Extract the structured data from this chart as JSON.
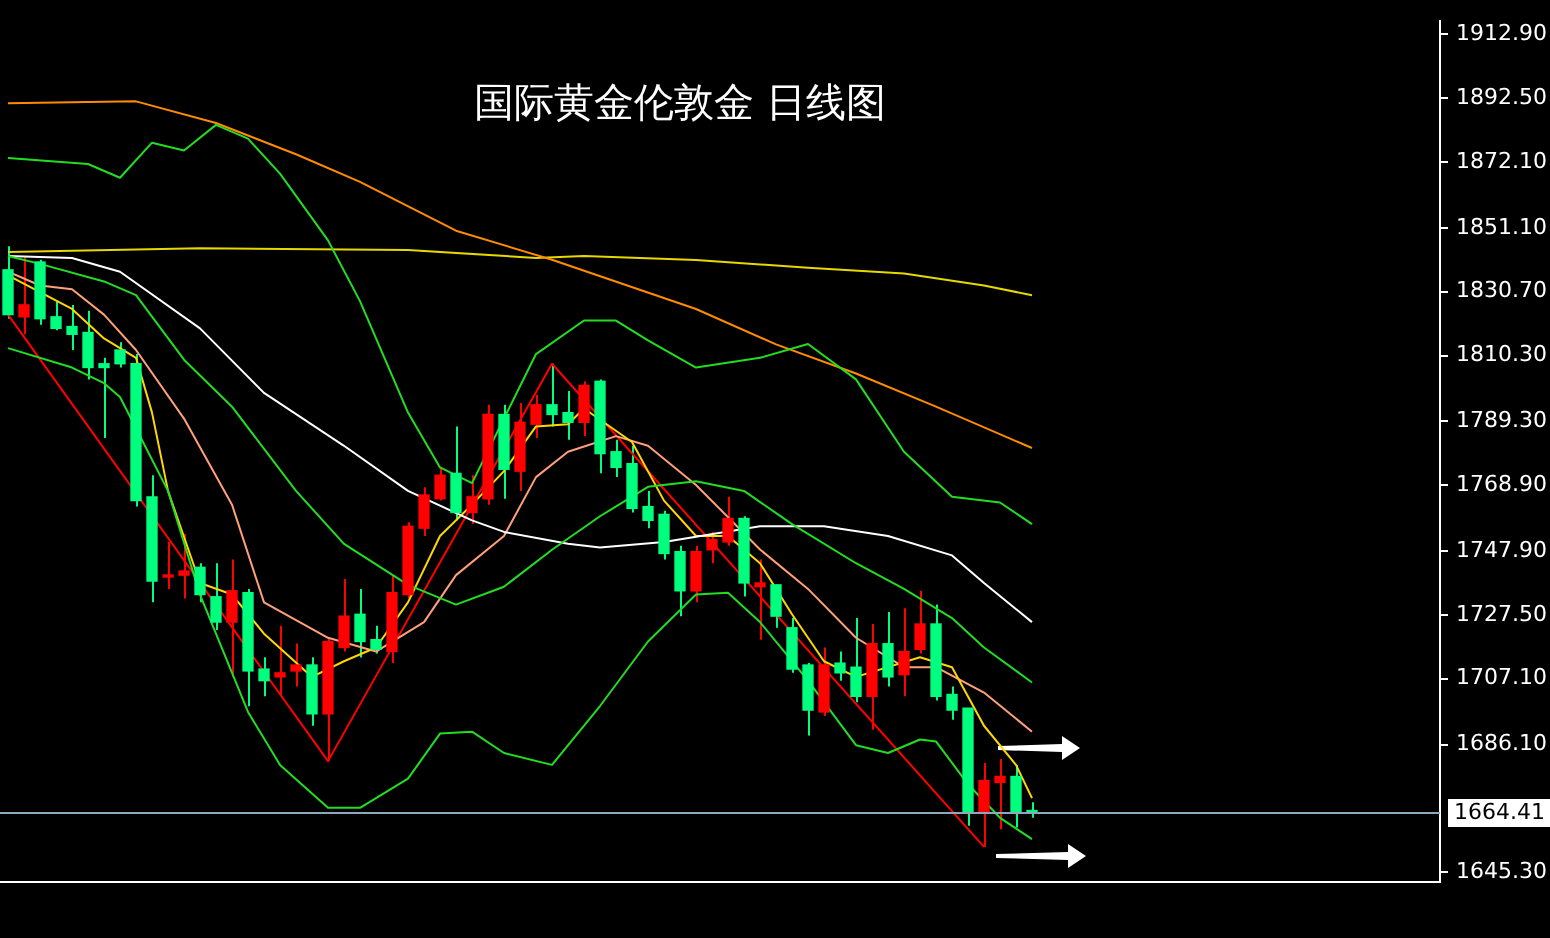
{
  "chart_data": {
    "type": "candlestick",
    "title": "国际黄金伦敦金 日线图",
    "categories": [
      null,
      null,
      null,
      null,
      null,
      null,
      null,
      null,
      null,
      null,
      null,
      null,
      null,
      null,
      null,
      null,
      null,
      null,
      null,
      null,
      null,
      null,
      null,
      null,
      null,
      null,
      null,
      null,
      null,
      null,
      null,
      null,
      null,
      null,
      null,
      null,
      null,
      null,
      null,
      null,
      null,
      null,
      null,
      null,
      null,
      null,
      null,
      null,
      null,
      null,
      null,
      null,
      null,
      null,
      null,
      null,
      null,
      null,
      null,
      null,
      null,
      null,
      null,
      null,
      null,
      null,
      null,
      null,
      null,
      null,
      null,
      null,
      null,
      null,
      null,
      null,
      null,
      null,
      null,
      null,
      null,
      null,
      null,
      null,
      null,
      null,
      null,
      null,
      null,
      null
    ],
    "ohlc": [
      [
        1837.7,
        1845.2,
        1822.1,
        1823.4
      ],
      [
        1822.7,
        1842.1,
        1817.1,
        1826.5
      ],
      [
        1840.2,
        1840.9,
        1820.2,
        1822.1
      ],
      [
        1822.7,
        1827.7,
        1818.4,
        1819.0
      ],
      [
        1819.6,
        1826.5,
        1812.1,
        1817.1
      ],
      [
        1817.7,
        1824.6,
        1802.7,
        1806.5
      ],
      [
        1807.7,
        1809.6,
        1784.0,
        1806.5
      ],
      [
        1812.1,
        1814.6,
        1806.5,
        1807.7
      ],
      [
        1807.7,
        1810.8,
        1762.1,
        1764.0
      ],
      [
        1765.2,
        1772.1,
        1731.5,
        1738.3
      ],
      [
        1739.6,
        1750.8,
        1735.8,
        1740.2
      ],
      [
        1740.2,
        1753.3,
        1732.7,
        1741.5
      ],
      [
        1742.7,
        1744.0,
        1731.5,
        1734.0
      ],
      [
        1733.3,
        1744.0,
        1722.7,
        1725.2
      ],
      [
        1725.2,
        1745.2,
        1707.7,
        1735.2
      ],
      [
        1734.6,
        1735.8,
        1698.3,
        1709.6
      ],
      [
        1710.2,
        1714.0,
        1701.5,
        1706.5
      ],
      [
        1707.7,
        1724.0,
        1701.5,
        1709.0
      ],
      [
        1709.6,
        1718.4,
        1704.6,
        1711.5
      ],
      [
        1711.5,
        1714.0,
        1692.1,
        1695.9
      ],
      [
        1695.9,
        1720.2,
        1680.8,
        1719.0
      ],
      [
        1717.1,
        1739.0,
        1715.8,
        1727.1
      ],
      [
        1727.7,
        1735.8,
        1713.9,
        1719.0
      ],
      [
        1719.6,
        1724.0,
        1715.2,
        1716.5
      ],
      [
        1715.8,
        1740.2,
        1712.1,
        1734.6
      ],
      [
        1734.0,
        1757.1,
        1732.7,
        1755.8
      ],
      [
        1755.2,
        1768.3,
        1752.7,
        1765.8
      ],
      [
        1764.6,
        1774.6,
        1764.0,
        1772.1
      ],
      [
        1772.7,
        1787.7,
        1757.7,
        1760.2
      ],
      [
        1760.2,
        1772.1,
        1756.5,
        1765.2
      ],
      [
        1764.6,
        1794.6,
        1762.7,
        1791.5
      ],
      [
        1791.5,
        1794.6,
        1764.6,
        1774.0
      ],
      [
        1773.4,
        1795.2,
        1767.1,
        1789.0
      ],
      [
        1788.4,
        1797.7,
        1784.0,
        1794.6
      ],
      [
        1794.6,
        1807.7,
        1787.7,
        1791.5
      ],
      [
        1792.1,
        1799.0,
        1783.4,
        1789.0
      ],
      [
        1789.0,
        1802.1,
        1784.6,
        1800.8
      ],
      [
        1802.1,
        1802.7,
        1772.7,
        1779.0
      ],
      [
        1779.6,
        1783.4,
        1771.5,
        1774.6
      ],
      [
        1775.8,
        1781.5,
        1760.2,
        1761.5
      ],
      [
        1762.1,
        1767.1,
        1755.2,
        1757.7
      ],
      [
        1759.6,
        1760.8,
        1745.2,
        1747.1
      ],
      [
        1747.7,
        1749.6,
        1727.1,
        1735.2
      ],
      [
        1735.2,
        1749.6,
        1731.5,
        1747.7
      ],
      [
        1748.3,
        1754.0,
        1744.0,
        1751.5
      ],
      [
        1750.8,
        1765.2,
        1749.6,
        1758.3
      ],
      [
        1758.3,
        1759.0,
        1733.4,
        1737.7
      ],
      [
        1736.5,
        1745.2,
        1719.6,
        1737.7
      ],
      [
        1737.1,
        1737.1,
        1723.4,
        1727.1
      ],
      [
        1723.4,
        1726.5,
        1709.0,
        1710.2
      ],
      [
        1711.5,
        1712.1,
        1689.0,
        1697.1
      ],
      [
        1696.5,
        1717.1,
        1695.2,
        1711.5
      ],
      [
        1712.1,
        1715.8,
        1706.5,
        1709.0
      ],
      [
        1710.8,
        1726.5,
        1699.6,
        1701.5
      ],
      [
        1701.5,
        1724.6,
        1690.8,
        1718.3
      ],
      [
        1718.3,
        1728.4,
        1704.6,
        1707.7
      ],
      [
        1708.4,
        1729.6,
        1701.5,
        1715.8
      ],
      [
        1716.5,
        1735.2,
        1715.2,
        1724.6
      ],
      [
        1724.6,
        1730.8,
        1700.2,
        1701.5
      ],
      [
        1702.1,
        1704.6,
        1694.0,
        1697.1
      ],
      [
        1697.7,
        1697.7,
        1660.2,
        1664.6
      ],
      [
        1664.6,
        1680.2,
        1653.4,
        1674.6
      ],
      [
        1674.0,
        1681.5,
        1659.0,
        1675.9
      ],
      [
        1675.9,
        1679.6,
        1659.6,
        1664.6
      ],
      [
        1664.6,
        1667.7,
        1662.7,
        1664.4
      ],
      null,
      null,
      null,
      null,
      null,
      null,
      null,
      null,
      null,
      null,
      null,
      null,
      null,
      null,
      null,
      null,
      null,
      null,
      null,
      null,
      null,
      null,
      null,
      null,
      null
    ],
    "colors": [
      "#00ff7f",
      "#ff0000",
      "#00ff7f",
      "#00ff7f",
      "#00ff7f",
      "#00ff7f",
      "#00ff7f",
      "#00ff7f",
      "#00ff7f",
      "#00ff7f",
      "#ff0000",
      "#ff0000",
      "#00ff7f",
      "#00ff7f",
      "#ff0000",
      "#00ff7f",
      "#00ff7f",
      "#ff0000",
      "#ff0000",
      "#00ff7f",
      "#ff0000",
      "#ff0000",
      "#00ff7f",
      "#00ff7f",
      "#ff0000",
      "#ff0000",
      "#ff0000",
      "#ff0000",
      "#00ff7f",
      "#ff0000",
      "#ff0000",
      "#00ff7f",
      "#ff0000",
      "#ff0000",
      "#00ff7f",
      "#00ff7f",
      "#ff0000",
      "#00ff7f",
      "#00ff7f",
      "#00ff7f",
      "#00ff7f",
      "#00ff7f",
      "#00ff7f",
      "#ff0000",
      "#ff0000",
      "#ff0000",
      "#00ff7f",
      "#ff0000",
      "#00ff7f",
      "#00ff7f",
      "#00ff7f",
      "#ff0000",
      "#00ff7f",
      "#00ff7f",
      "#ff0000",
      "#00ff7f",
      "#ff0000",
      "#ff0000",
      "#00ff7f",
      "#00ff7f",
      "#00ff7f",
      "#ff0000",
      "#ff0000",
      "#00ff7f",
      "#00ff7f",
      null,
      null,
      null,
      null,
      null,
      null,
      null,
      null,
      null,
      null,
      null,
      null,
      null,
      null,
      null,
      null,
      null,
      null,
      null,
      null,
      null,
      null,
      null,
      null,
      null
    ],
    "series": [
      {
        "type": "line",
        "color": "#22dd22",
        "values": [
          1873.4,
          null,
          null,
          null,
          null,
          1871.5,
          null,
          1867.1,
          null,
          1878.3,
          null,
          1875.8,
          null,
          1884.0,
          null,
          1879.6,
          null,
          1868.4,
          null,
          null,
          1847.1,
          null,
          1827.7,
          null,
          null,
          1792.1,
          null,
          1774.6,
          null,
          1769.6,
          null,
          1790.2,
          null,
          1810.8,
          null,
          null,
          1821.5,
          null,
          1821.5,
          null,
          1815.2,
          null,
          null,
          1806.5,
          null,
          null,
          null,
          1809.6,
          null,
          null,
          1814.0,
          null,
          null,
          1802.7,
          null,
          null,
          1779.6,
          null,
          null,
          1765.2,
          null,
          null,
          1763.4,
          null,
          1756.5,
          null,
          null,
          null,
          null,
          null,
          null,
          null,
          null,
          null,
          null,
          null,
          null,
          null,
          null,
          null,
          null,
          null,
          null,
          null,
          null,
          null,
          null,
          null,
          null,
          null
        ]
      },
      {
        "type": "line",
        "color": "#22dd22",
        "values": [
          1842.1,
          null,
          1839.6,
          null,
          null,
          null,
          1834.0,
          null,
          1829.6,
          null,
          null,
          1809.0,
          null,
          null,
          1794.0,
          null,
          null,
          null,
          1767.1,
          null,
          null,
          1750.2,
          null,
          null,
          null,
          1737.1,
          null,
          null,
          1730.8,
          null,
          null,
          1736.5,
          null,
          null,
          1748.3,
          null,
          null,
          1759.0,
          null,
          null,
          1768.4,
          null,
          null,
          1770.2,
          null,
          null,
          1767.1,
          null,
          null,
          1756.5,
          null,
          null,
          null,
          1744.0,
          null,
          null,
          1735.8,
          null,
          null,
          1726.5,
          null,
          1717.1,
          null,
          null,
          1705.9,
          null,
          null,
          null,
          null,
          null,
          null,
          null,
          null,
          null,
          null,
          null,
          null,
          null,
          null,
          null,
          null,
          null,
          null,
          null,
          null,
          null,
          null,
          null,
          null,
          null
        ]
      },
      {
        "type": "line",
        "color": "#22dd22",
        "values": [
          1812.7,
          null,
          null,
          null,
          1806.5,
          null,
          1801.5,
          1797.1,
          null,
          null,
          1767.1,
          null,
          1734.0,
          null,
          null,
          1696.5,
          null,
          1679.6,
          null,
          null,
          1665.9,
          null,
          1665.9,
          null,
          null,
          1675.2,
          null,
          1689.6,
          null,
          1690.2,
          null,
          1683.4,
          null,
          null,
          1679.6,
          null,
          null,
          1698.4,
          null,
          null,
          1719.0,
          null,
          null,
          1734.0,
          null,
          1734.6,
          null,
          1725.2,
          null,
          null,
          1706.5,
          null,
          null,
          1685.9,
          null,
          1683.4,
          null,
          1687.7,
          1687.1,
          null,
          1673.4,
          null,
          1662.7,
          null,
          1655.9,
          null,
          null,
          null,
          null,
          null,
          null,
          null,
          null,
          null,
          null,
          null,
          null,
          null,
          null,
          null,
          null,
          null,
          null,
          null,
          null,
          null,
          null,
          null,
          null,
          null
        ]
      },
      {
        "type": "line",
        "color": "#ffffff",
        "values": [
          1842.1,
          null,
          null,
          null,
          1841.5,
          null,
          null,
          1837.1,
          null,
          null,
          null,
          null,
          1819.0,
          null,
          null,
          null,
          1798.4,
          null,
          null,
          null,
          null,
          1781.5,
          null,
          null,
          null,
          1767.1,
          null,
          null,
          null,
          1757.7,
          null,
          1754.0,
          null,
          null,
          null,
          1750.2,
          null,
          1749.0,
          null,
          null,
          null,
          1750.8,
          null,
          null,
          null,
          null,
          null,
          1755.8,
          null,
          null,
          null,
          1755.8,
          null,
          null,
          null,
          1752.7,
          null,
          null,
          null,
          1746.5,
          null,
          1737.7,
          null,
          null,
          1725.2,
          null,
          null,
          null,
          null,
          null,
          null,
          null,
          null,
          null,
          null,
          null,
          null,
          null,
          null,
          null,
          null,
          null,
          null,
          null,
          null,
          null,
          null,
          null,
          null,
          null
        ]
      },
      {
        "type": "line",
        "color": "#ff8c00",
        "values": [
          1890.9,
          null,
          null,
          null,
          null,
          null,
          null,
          null,
          1891.5,
          null,
          null,
          null,
          null,
          1884.6,
          null,
          null,
          null,
          null,
          1874.6,
          null,
          null,
          null,
          1865.8,
          null,
          null,
          null,
          null,
          null,
          1850.2,
          null,
          null,
          null,
          null,
          null,
          1840.9,
          null,
          null,
          null,
          null,
          null,
          null,
          null,
          null,
          1825.2,
          null,
          null,
          null,
          null,
          1813.9,
          null,
          null,
          null,
          null,
          1804.6,
          null,
          null,
          null,
          null,
          1794.0,
          null,
          null,
          null,
          null,
          null,
          1780.8,
          null,
          null,
          null,
          null,
          null,
          null,
          null,
          null,
          null,
          null,
          null,
          null,
          null,
          null,
          null,
          null,
          null,
          null,
          null,
          null,
          null,
          null,
          null,
          null,
          null
        ]
      },
      {
        "type": "line",
        "color": "#e6d800",
        "values": [
          1843.4,
          null,
          null,
          null,
          null,
          null,
          null,
          null,
          null,
          null,
          null,
          null,
          1844.6,
          null,
          null,
          null,
          null,
          null,
          null,
          null,
          null,
          null,
          null,
          null,
          null,
          1844.0,
          null,
          null,
          null,
          null,
          null,
          null,
          null,
          1841.5,
          null,
          null,
          1842.1,
          null,
          null,
          null,
          null,
          null,
          null,
          1840.8,
          null,
          null,
          null,
          null,
          null,
          null,
          1838.4,
          null,
          null,
          null,
          null,
          null,
          1836.5,
          null,
          null,
          null,
          null,
          1832.7,
          null,
          null,
          1829.6,
          null,
          null,
          null,
          null,
          null,
          null,
          null,
          null,
          null,
          null,
          null,
          null,
          null,
          null,
          null,
          null,
          null,
          null,
          null,
          null,
          null,
          null,
          null,
          null,
          null
        ]
      },
      {
        "type": "line",
        "color": "#ffd700",
        "values": [
          1835.9,
          null,
          null,
          null,
          1825.2,
          null,
          1815.8,
          null,
          1809.6,
          1792.1,
          1767.1,
          null,
          1737.7,
          null,
          1734.0,
          null,
          1721.5,
          null,
          null,
          1707.7,
          null,
          1712.7,
          null,
          1717.1,
          null,
          1731.5,
          null,
          1752.7,
          null,
          1762.7,
          null,
          1773.4,
          null,
          1787.7,
          null,
          1788.4,
          1793.4,
          null,
          null,
          1782.7,
          null,
          1764.0,
          null,
          1752.7,
          null,
          1752.7,
          null,
          1744.0,
          null,
          1727.7,
          null,
          1712.7,
          null,
          1707.7,
          null,
          null,
          null,
          1714.0,
          null,
          1710.8,
          null,
          1692.1,
          null,
          1679.6,
          1669.0,
          null,
          null,
          null,
          null,
          null,
          null,
          null,
          null,
          null,
          null,
          null,
          null,
          null,
          null,
          null,
          null,
          null,
          null,
          null,
          null,
          null,
          null,
          null,
          null,
          null
        ]
      },
      {
        "type": "line",
        "color": "#ffa07a",
        "values": [
          1837.1,
          null,
          1832.7,
          null,
          1831.5,
          null,
          1823.4,
          null,
          1812.1,
          null,
          null,
          1790.2,
          null,
          null,
          1762.7,
          null,
          1731.5,
          null,
          null,
          null,
          1720.2,
          null,
          null,
          1715.8,
          null,
          null,
          1725.2,
          null,
          1740.2,
          null,
          null,
          1752.7,
          null,
          1771.5,
          null,
          1779.6,
          null,
          null,
          1784.6,
          null,
          1781.5,
          null,
          null,
          1769.0,
          null,
          null,
          null,
          1748.4,
          null,
          null,
          1735.8,
          null,
          null,
          1720.2,
          null,
          null,
          1710.8,
          null,
          1710.8,
          null,
          null,
          1702.7,
          null,
          null,
          1690.2,
          null,
          null,
          null,
          null,
          null,
          null,
          null,
          null,
          null,
          null,
          null,
          null,
          null,
          null,
          null,
          null,
          null,
          null,
          null,
          null,
          null,
          null,
          null,
          null,
          null
        ]
      },
      {
        "type": "line",
        "color": "#ff0000",
        "values": [
          1823.4,
          null,
          null,
          null,
          null,
          null,
          null,
          null,
          null,
          null,
          null,
          null,
          null,
          null,
          null,
          null,
          null,
          null,
          null,
          null,
          1680.8,
          null,
          null,
          null,
          null,
          null,
          null,
          null,
          null,
          null,
          null,
          null,
          null,
          null,
          1807.7,
          null,
          null,
          null,
          null,
          null,
          null,
          null,
          null,
          null,
          null,
          null,
          null,
          null,
          null,
          null,
          null,
          null,
          null,
          null,
          null,
          null,
          null,
          null,
          null,
          null,
          null,
          1653.4,
          null,
          null,
          null,
          null,
          null,
          null,
          null,
          null,
          null,
          null,
          null,
          null,
          null,
          null,
          null,
          null,
          null,
          null,
          null,
          null,
          null,
          null,
          null,
          null,
          null,
          null,
          null,
          null
        ]
      }
    ],
    "ylim": [
      1642.2,
      1917.1
    ],
    "yticks": [
      {
        "value": 1912.9,
        "label": "1912.90"
      },
      {
        "value": 1892.5,
        "label": "1892.50"
      },
      {
        "value": 1872.1,
        "label": "1872.10"
      },
      {
        "value": 1851.1,
        "label": "1851.10"
      },
      {
        "value": 1830.7,
        "label": "1830.70"
      },
      {
        "value": 1810.3,
        "label": "1810.30"
      },
      {
        "value": 1789.3,
        "label": "1789.30"
      },
      {
        "value": 1768.9,
        "label": "1768.90"
      },
      {
        "value": 1747.9,
        "label": "1747.90"
      },
      {
        "value": 1727.5,
        "label": "1727.50"
      },
      {
        "value": 1707.1,
        "label": "1707.10"
      },
      {
        "value": 1686.1,
        "label": "1686.10"
      },
      {
        "value": 1645.3,
        "label": "1645.30"
      }
    ],
    "ref_lines": [
      {
        "axis": "y",
        "value": 1664.41,
        "label": "1664.41",
        "color": "#8fa8bc"
      }
    ],
    "tick_labels": "y",
    "grid": false,
    "legend": false,
    "marker": "none"
  }
}
